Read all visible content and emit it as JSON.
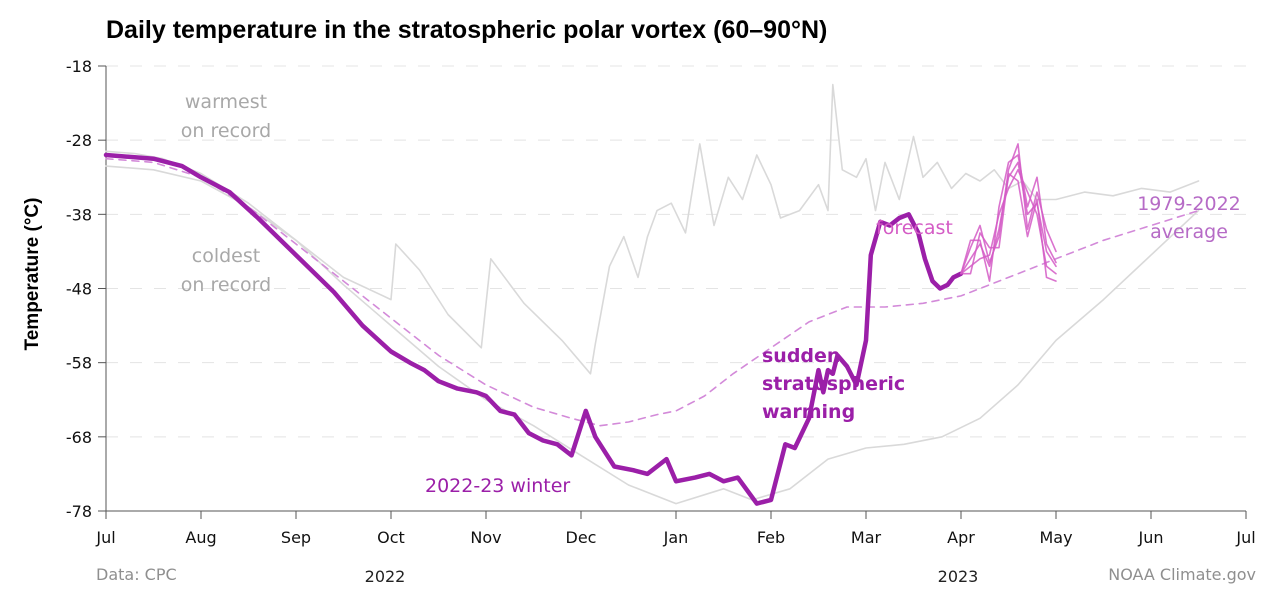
{
  "chart_data": {
    "type": "line",
    "title": "Daily temperature in the stratospheric polar vortex (60–90°N)",
    "ylabel": "Temperature (°C)",
    "xlabel": "",
    "ylim": [
      -78,
      -18
    ],
    "y_ticks": [
      -18,
      -28,
      -38,
      -48,
      -58,
      -68,
      -78
    ],
    "x_ticks": [
      "Jul",
      "Aug",
      "Sep",
      "Oct",
      "Nov",
      "Dec",
      "Jan",
      "Feb",
      "Mar",
      "Apr",
      "May",
      "Jun",
      "Jul"
    ],
    "x_unit": "months since Jul 1, 2022",
    "year_labels": [
      "2022",
      "2023"
    ],
    "grid": "horizontal dashed",
    "series": [
      {
        "name": "warmest on record",
        "color": "#d9d9d9",
        "x": [
          0,
          0.3,
          0.6,
          1.0,
          1.5,
          2.0,
          2.5,
          3.0,
          3.05,
          3.3,
          3.6,
          3.95,
          4.05,
          4.4,
          4.8,
          5.1,
          5.15,
          5.3,
          5.45,
          5.6,
          5.7,
          5.8,
          5.95,
          6.1,
          6.25,
          6.4,
          6.55,
          6.7,
          6.85,
          7.0,
          7.1,
          7.3,
          7.5,
          7.6,
          7.65,
          7.75,
          7.9,
          8.0,
          8.1,
          8.2,
          8.35,
          8.5,
          8.6,
          8.75,
          8.9,
          9.05,
          9.2,
          9.35,
          9.5,
          9.65,
          9.8,
          10.0,
          10.3,
          10.6,
          10.9,
          11.2,
          11.5
        ],
        "y": [
          -29.5,
          -29.8,
          -30.5,
          -32.5,
          -36.5,
          -41.5,
          -46.5,
          -49.5,
          -42.0,
          -45.5,
          -51.5,
          -56.0,
          -44.0,
          -50.0,
          -55.0,
          -59.5,
          -55.5,
          -45.0,
          -41.0,
          -46.5,
          -41.0,
          -37.5,
          -36.5,
          -40.5,
          -28.5,
          -39.5,
          -33.0,
          -36.0,
          -30.0,
          -34.0,
          -38.5,
          -37.5,
          -34.0,
          -37.5,
          -20.5,
          -32.0,
          -33.0,
          -30.5,
          -37.5,
          -31.0,
          -36.0,
          -27.5,
          -33.0,
          -31.0,
          -34.5,
          -32.5,
          -33.5,
          -32.0,
          -34.5,
          -33.5,
          -36.0,
          -36.0,
          -35.0,
          -35.5,
          -34.5,
          -35.0,
          -33.5
        ]
      },
      {
        "name": "coldest on record",
        "color": "#d9d9d9",
        "x": [
          0,
          0.5,
          1.0,
          1.5,
          2.0,
          2.5,
          3.0,
          3.5,
          4.0,
          4.5,
          5.0,
          5.5,
          6.0,
          6.5,
          6.8,
          7.2,
          7.6,
          8.0,
          8.4,
          8.8,
          9.2,
          9.6,
          10.0,
          10.5,
          11.0,
          11.5
        ],
        "y": [
          -31.5,
          -32.0,
          -33.5,
          -37.0,
          -41.5,
          -47.5,
          -53.0,
          -58.5,
          -63.0,
          -66.5,
          -70.5,
          -74.5,
          -77.0,
          -75.0,
          -76.5,
          -75.0,
          -71.0,
          -69.5,
          -69.0,
          -68.0,
          -65.5,
          -61.0,
          -55.0,
          -49.5,
          -43.5,
          -37.5
        ]
      },
      {
        "name": "1979-2022 average",
        "color": "#d38ad9",
        "dashed": true,
        "x": [
          0,
          0.5,
          1.0,
          1.5,
          2.0,
          2.5,
          3.0,
          3.5,
          4.0,
          4.5,
          4.9,
          5.2,
          5.5,
          5.8,
          6.0,
          6.3,
          6.6,
          7.0,
          7.4,
          7.8,
          8.2,
          8.6,
          9.0,
          9.5,
          10.0,
          10.5,
          11.0,
          11.5
        ],
        "y": [
          -30.5,
          -31.0,
          -33.0,
          -37.0,
          -42.0,
          -47.0,
          -52.0,
          -57.0,
          -61.0,
          -64.0,
          -65.5,
          -66.5,
          -66.0,
          -65.0,
          -64.5,
          -62.5,
          -59.5,
          -56.0,
          -52.5,
          -50.5,
          -50.5,
          -50.0,
          -49.0,
          -46.5,
          -44.0,
          -41.5,
          -39.5,
          -37.5
        ]
      },
      {
        "name": "2022-23 winter",
        "color": "#9b1fa8",
        "x": [
          0,
          0.5,
          0.8,
          1.0,
          1.3,
          1.6,
          2.0,
          2.4,
          2.7,
          3.0,
          3.2,
          3.35,
          3.5,
          3.7,
          3.9,
          4.0,
          4.15,
          4.3,
          4.45,
          4.6,
          4.75,
          4.9,
          5.05,
          5.15,
          5.25,
          5.35,
          5.55,
          5.7,
          5.9,
          6.0,
          6.2,
          6.35,
          6.5,
          6.65,
          6.85,
          7.0,
          7.15,
          7.25,
          7.4,
          7.5,
          7.55,
          7.6,
          7.65,
          7.7,
          7.8,
          7.9,
          8.0,
          8.05,
          8.15,
          8.25,
          8.35,
          8.45,
          8.55,
          8.62,
          8.7,
          8.78,
          8.86,
          8.92,
          9.0
        ],
        "y": [
          -30.0,
          -30.5,
          -31.5,
          -33.0,
          -35.0,
          -38.5,
          -43.5,
          -48.5,
          -53.0,
          -56.5,
          -58.0,
          -59.0,
          -60.5,
          -61.5,
          -62.0,
          -62.5,
          -64.5,
          -65.0,
          -67.5,
          -68.5,
          -69.0,
          -70.5,
          -64.5,
          -68.0,
          -70.0,
          -72.0,
          -72.5,
          -73.0,
          -71.0,
          -74.0,
          -73.5,
          -73.0,
          -74.0,
          -73.5,
          -77.0,
          -76.5,
          -69.0,
          -69.5,
          -65.5,
          -59.0,
          -62.0,
          -59.0,
          -59.5,
          -57.0,
          -58.5,
          -61.0,
          -55.0,
          -43.5,
          -39.0,
          -39.5,
          -38.5,
          -38.0,
          -40.5,
          -44.0,
          -47.0,
          -48.0,
          -47.5,
          -46.5,
          -46.0
        ]
      },
      {
        "name": "forecast",
        "color": "#d45bc5",
        "x": [
          9.0,
          9.1,
          9.2,
          9.3,
          9.4,
          9.5,
          9.6,
          9.7,
          9.8,
          9.9,
          10.0
        ],
        "y": [
          -46.0,
          -44.0,
          -42.0,
          -45.0,
          -40.0,
          -33.0,
          -31.0,
          -38.0,
          -36.5,
          -43.0,
          -45.0
        ]
      }
    ],
    "annotations": [
      "warmest on record",
      "coldest on record",
      "forecast",
      "1979-2022 average",
      "sudden stratospheric warming",
      "2022-23 winter"
    ]
  },
  "labels": {
    "warmest_line1": "warmest",
    "warmest_line2": "on record",
    "coldest_line1": "coldest",
    "coldest_line2": "on record",
    "forecast": "forecast",
    "average_line1": "1979-2022",
    "average_line2": "average",
    "ssw_line1": "sudden",
    "ssw_line2": "stratospheric",
    "ssw_line3": "warming",
    "winter": "2022-23 winter"
  },
  "footer": {
    "source": "Data: CPC",
    "credit": "NOAA Climate.gov",
    "year_left": "2022",
    "year_right": "2023"
  }
}
